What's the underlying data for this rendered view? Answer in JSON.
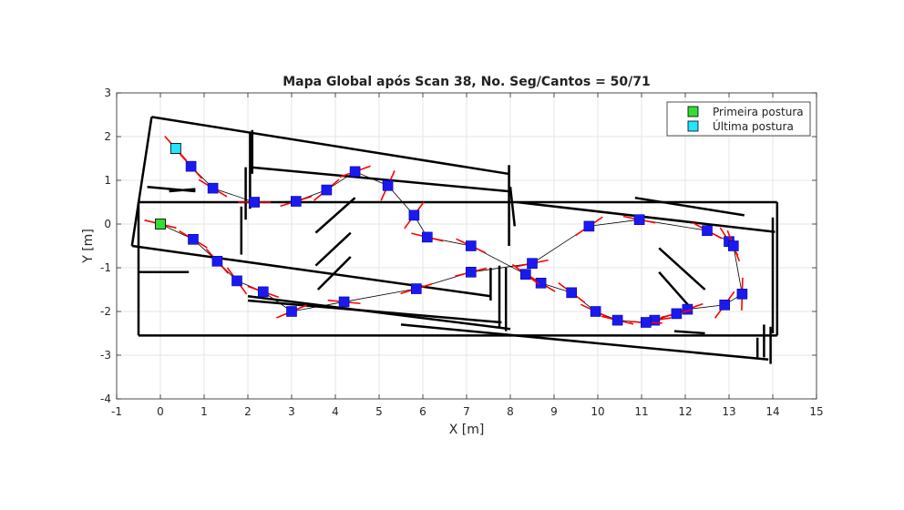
{
  "chart_data": {
    "type": "scatter",
    "title": "Mapa Global após Scan 38, No. Seg/Cantos = 50/71",
    "xlabel": "X [m]",
    "ylabel": "Y [m]",
    "xlim": [
      -1,
      15
    ],
    "ylim": [
      -4,
      3
    ],
    "xticks": [
      -1,
      0,
      1,
      2,
      3,
      4,
      5,
      6,
      7,
      8,
      9,
      10,
      11,
      12,
      13,
      14,
      15
    ],
    "yticks": [
      -4,
      -3,
      -2,
      -1,
      0,
      1,
      2,
      3
    ],
    "grid": true,
    "legend_position": "top-right",
    "legend": [
      {
        "label": "Primeira postura",
        "color": "#33dd33"
      },
      {
        "label": "Última postura",
        "color": "#22e6ff"
      }
    ],
    "colors": {
      "pose": "#1a1af0",
      "heading": "#ff0000",
      "wall": "#000000",
      "path": "#000000"
    },
    "first_pose": {
      "x": 0.0,
      "y": 0.0,
      "theta": 2.9
    },
    "last_pose": {
      "x": 0.35,
      "y": 1.73,
      "theta": 2.3
    },
    "poses": [
      {
        "x": 0.0,
        "y": 0.0,
        "theta": 2.9
      },
      {
        "x": 0.75,
        "y": -0.35,
        "theta": 2.6
      },
      {
        "x": 1.3,
        "y": -0.85,
        "theta": 2.3
      },
      {
        "x": 1.75,
        "y": -1.3,
        "theta": 2.2
      },
      {
        "x": 2.35,
        "y": -1.55,
        "theta": 2.8
      },
      {
        "x": 3.0,
        "y": -2.0,
        "theta": 0.4
      },
      {
        "x": 4.2,
        "y": -1.78,
        "theta": -0.1
      },
      {
        "x": 5.85,
        "y": -1.48,
        "theta": 0.3
      },
      {
        "x": 7.1,
        "y": -1.1,
        "theta": 0.25
      },
      {
        "x": 8.5,
        "y": -0.9,
        "theta": 0.2
      },
      {
        "x": 9.8,
        "y": -0.05,
        "theta": 0.6
      },
      {
        "x": 10.95,
        "y": 0.1,
        "theta": -0.2
      },
      {
        "x": 12.5,
        "y": -0.15,
        "theta": -0.5
      },
      {
        "x": 13.0,
        "y": -0.4,
        "theta": -1.0
      },
      {
        "x": 13.1,
        "y": -0.5,
        "theta": -1.2
      },
      {
        "x": 13.3,
        "y": -1.6,
        "theta": -1.6
      },
      {
        "x": 12.9,
        "y": -1.85,
        "theta": -2.2
      },
      {
        "x": 12.05,
        "y": -1.95,
        "theta": -2.8
      },
      {
        "x": 11.8,
        "y": -2.05,
        "theta": -2.9
      },
      {
        "x": 11.3,
        "y": -2.2,
        "theta": -3.0
      },
      {
        "x": 11.1,
        "y": -2.25,
        "theta": 3.1
      },
      {
        "x": 10.45,
        "y": -2.2,
        "theta": 2.9
      },
      {
        "x": 9.95,
        "y": -2.0,
        "theta": 2.7
      },
      {
        "x": 9.4,
        "y": -1.57,
        "theta": 2.5
      },
      {
        "x": 8.7,
        "y": -1.35,
        "theta": 2.6
      },
      {
        "x": 8.35,
        "y": -1.15,
        "theta": 2.5
      },
      {
        "x": 7.1,
        "y": -0.5,
        "theta": 2.7
      },
      {
        "x": 6.1,
        "y": -0.3,
        "theta": 2.9
      },
      {
        "x": 5.8,
        "y": 0.2,
        "theta": -2.2
      },
      {
        "x": 5.2,
        "y": 0.88,
        "theta": -2.0
      },
      {
        "x": 4.45,
        "y": 1.2,
        "theta": -2.8
      },
      {
        "x": 3.8,
        "y": 0.78,
        "theta": 0.7
      },
      {
        "x": 3.1,
        "y": 0.52,
        "theta": 0.3
      },
      {
        "x": 2.15,
        "y": 0.5,
        "theta": 0.0
      },
      {
        "x": 1.2,
        "y": 0.82,
        "theta": 2.6
      },
      {
        "x": 0.7,
        "y": 1.32,
        "theta": 2.3
      },
      {
        "x": 0.35,
        "y": 1.73,
        "theta": 2.3
      }
    ],
    "walls": [
      [
        -0.2,
        2.45,
        7.95,
        1.15
      ],
      [
        -0.2,
        2.45,
        -0.65,
        -0.5
      ],
      [
        -0.65,
        -0.5,
        7.55,
        -1.65
      ],
      [
        -0.5,
        0.5,
        14.1,
        0.5
      ],
      [
        -0.5,
        0.5,
        -0.5,
        -2.55
      ],
      [
        -0.5,
        -2.55,
        14.1,
        -2.55
      ],
      [
        14.1,
        0.5,
        14.1,
        -2.55
      ],
      [
        14.0,
        0.15,
        14.0,
        -2.5
      ],
      [
        8.15,
        0.5,
        14.05,
        -0.18
      ],
      [
        8.0,
        0.85,
        8.1,
        -0.05
      ],
      [
        7.97,
        1.35,
        7.97,
        -0.5
      ],
      [
        2.05,
        1.3,
        7.95,
        0.75
      ],
      [
        2.1,
        2.15,
        2.1,
        1.15
      ],
      [
        2.05,
        2.1,
        2.05,
        0.35
      ],
      [
        1.95,
        1.3,
        1.95,
        0.1
      ],
      [
        1.85,
        0.4,
        1.85,
        -0.7
      ],
      [
        2.0,
        -1.75,
        7.8,
        -2.25
      ],
      [
        2.0,
        -1.65,
        8.0,
        -2.4
      ],
      [
        7.55,
        -1.0,
        7.55,
        -1.75
      ],
      [
        7.75,
        -0.95,
        7.75,
        -2.35
      ],
      [
        7.9,
        -1.0,
        7.9,
        -2.45
      ],
      [
        -0.5,
        -1.1,
        0.65,
        -1.1
      ],
      [
        -0.3,
        0.85,
        0.8,
        0.75
      ],
      [
        0.2,
        0.75,
        0.8,
        0.8
      ],
      [
        3.55,
        -0.2,
        4.45,
        0.6
      ],
      [
        3.55,
        -0.95,
        4.35,
        -0.2
      ],
      [
        3.6,
        -1.5,
        4.35,
        -0.75
      ],
      [
        10.85,
        0.6,
        13.35,
        0.2
      ],
      [
        11.4,
        -0.55,
        12.45,
        -1.5
      ],
      [
        11.4,
        -1.1,
        12.15,
        -1.95
      ],
      [
        11.75,
        -2.45,
        12.45,
        -2.5
      ],
      [
        5.5,
        -2.3,
        13.9,
        -3.1
      ],
      [
        13.8,
        -2.3,
        13.8,
        -3.05
      ],
      [
        13.95,
        -2.35,
        13.95,
        -3.2
      ],
      [
        13.65,
        -2.6,
        13.65,
        -3.05
      ]
    ]
  }
}
